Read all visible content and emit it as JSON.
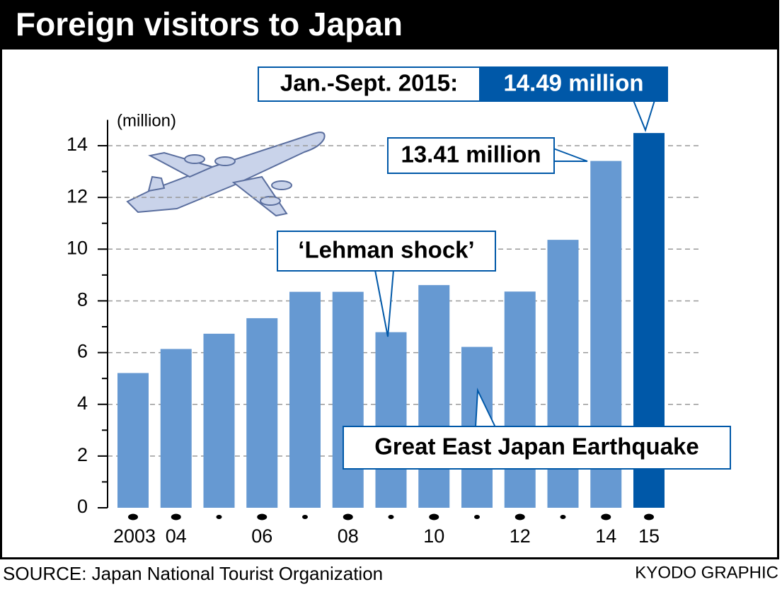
{
  "chart_data": {
    "type": "bar",
    "title": "Foreign visitors to Japan",
    "y_label": "(million)",
    "categories": [
      "2003",
      "04",
      null,
      "06",
      null,
      "08",
      null,
      "10",
      null,
      "12",
      null,
      "14",
      "15"
    ],
    "values": [
      5.21,
      6.14,
      6.73,
      7.33,
      8.35,
      8.35,
      6.79,
      8.61,
      6.22,
      8.36,
      10.36,
      13.41,
      14.49
    ],
    "colors": [
      "#6699d2",
      "#6699d2",
      "#6699d2",
      "#6699d2",
      "#6699d2",
      "#6699d2",
      "#6699d2",
      "#6699d2",
      "#6699d2",
      "#6699d2",
      "#6699d2",
      "#6699d2",
      "#0058a8"
    ],
    "ylim": [
      0,
      15
    ],
    "yticks": [
      0,
      2,
      4,
      6,
      8,
      10,
      12,
      14
    ],
    "minor_yticks": [
      1,
      3,
      5,
      7,
      9,
      11,
      13
    ],
    "grid": true,
    "annotations": {
      "period": "Jan.-Sept. 2015:",
      "latest": "14.49 million",
      "previous": "13.41 million",
      "lehman": "‘Lehman shock’",
      "earthquake": "Great East Japan Earthquake"
    },
    "source": "SOURCE: Japan National Tourist Organization",
    "credit": "KYODO GRAPHIC"
  }
}
